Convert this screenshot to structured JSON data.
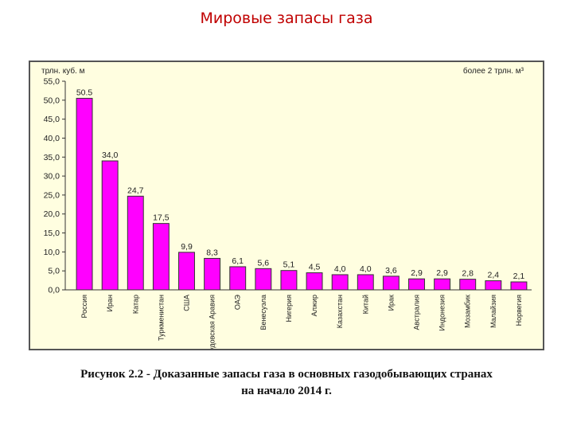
{
  "slide": {
    "title": "Мировые запасы газа"
  },
  "caption": {
    "line1": "Рисунок 2.2 - Доказанные запасы газа в основных газодобывающих странах",
    "line2": "на начало 2014 г."
  },
  "chart_data": {
    "type": "bar",
    "title": "",
    "ylabel": "трлн. куб. м",
    "annotation": "более 2 трлн. м³",
    "categories": [
      "Россия",
      "Иран",
      "Катар",
      "Туркменистан",
      "США",
      "Саудовская Аравия",
      "ОАЭ",
      "Венесуэла",
      "Нигерия",
      "Алжир",
      "Казахстан",
      "Китай",
      "Ирак",
      "Австралия",
      "Индонезия",
      "Мозамбик",
      "Малайзия",
      "Норвегия"
    ],
    "values": [
      50.5,
      34.0,
      24.7,
      17.5,
      9.9,
      8.3,
      6.1,
      5.6,
      5.1,
      4.5,
      4.0,
      4.0,
      3.6,
      2.9,
      2.9,
      2.8,
      2.4,
      2.1
    ],
    "value_labels": [
      "50.5",
      "34,0",
      "24,7",
      "17,5",
      "9,9",
      "8,3",
      "6,1",
      "5,6",
      "5,1",
      "4,5",
      "4,0",
      "4,0",
      "3,6",
      "2,9",
      "2,9",
      "2,8",
      "2,4",
      "2,1"
    ],
    "yticks": [
      "0,0",
      "5,0",
      "10,0",
      "15,0",
      "20,0",
      "25,0",
      "30,0",
      "35,0",
      "40,0",
      "45,0",
      "50,0",
      "55,0"
    ],
    "ylim": [
      0,
      55
    ],
    "bar_color": "#ff00ff",
    "bar_border": "#333333",
    "grid": false,
    "legend": "none"
  }
}
